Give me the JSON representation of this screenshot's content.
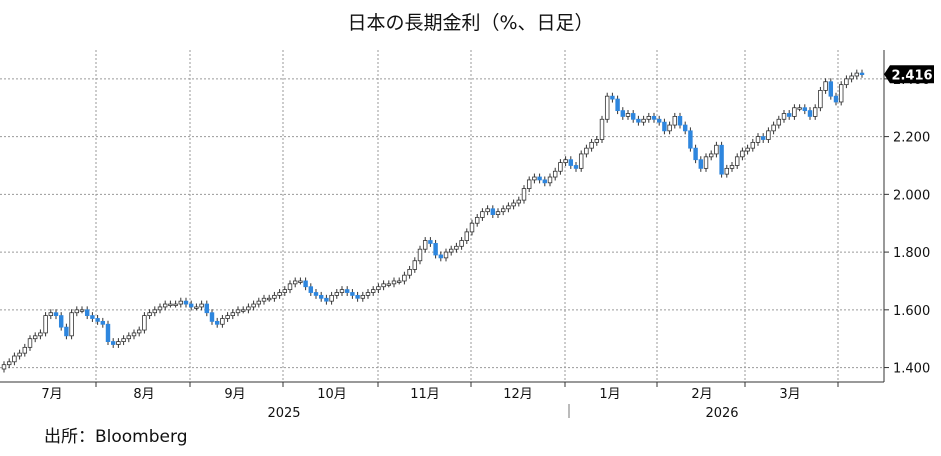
{
  "title": "日本の長期金利（%、日足）",
  "source": "出所：Bloomberg",
  "chart_data": {
    "type": "candlestick",
    "title": "日本の長期金利（%、日足）",
    "ylim": [
      1.35,
      2.5
    ],
    "yticks": [
      "1.400",
      "1.600",
      "1.800",
      "2.000",
      "2.200",
      "2.400"
    ],
    "last_value_label": "2.416",
    "months": [
      "7月",
      "8月",
      "9月",
      "10月",
      "11月",
      "12月",
      "1月",
      "2月",
      "3月"
    ],
    "years": [
      "2025",
      "2026"
    ],
    "grid": true,
    "up_color": "#ffffff",
    "down_color": "#2e86de",
    "close_series": [
      1.41,
      1.42,
      1.44,
      1.45,
      1.47,
      1.5,
      1.51,
      1.52,
      1.58,
      1.59,
      1.58,
      1.54,
      1.51,
      1.59,
      1.6,
      1.6,
      1.58,
      1.57,
      1.56,
      1.55,
      1.49,
      1.48,
      1.49,
      1.5,
      1.51,
      1.52,
      1.53,
      1.58,
      1.59,
      1.6,
      1.61,
      1.62,
      1.62,
      1.62,
      1.63,
      1.62,
      1.61,
      1.61,
      1.62,
      1.59,
      1.56,
      1.55,
      1.57,
      1.58,
      1.59,
      1.6,
      1.6,
      1.61,
      1.62,
      1.63,
      1.64,
      1.64,
      1.65,
      1.66,
      1.67,
      1.69,
      1.7,
      1.7,
      1.68,
      1.66,
      1.65,
      1.64,
      1.63,
      1.65,
      1.66,
      1.67,
      1.66,
      1.65,
      1.64,
      1.65,
      1.66,
      1.67,
      1.68,
      1.69,
      1.69,
      1.7,
      1.7,
      1.72,
      1.74,
      1.77,
      1.81,
      1.84,
      1.83,
      1.79,
      1.78,
      1.8,
      1.81,
      1.82,
      1.84,
      1.87,
      1.9,
      1.92,
      1.94,
      1.95,
      1.93,
      1.94,
      1.95,
      1.96,
      1.97,
      1.98,
      2.02,
      2.05,
      2.06,
      2.05,
      2.04,
      2.06,
      2.08,
      2.11,
      2.12,
      2.1,
      2.09,
      2.14,
      2.16,
      2.18,
      2.19,
      2.26,
      2.34,
      2.33,
      2.29,
      2.27,
      2.28,
      2.26,
      2.25,
      2.26,
      2.27,
      2.26,
      2.25,
      2.22,
      2.24,
      2.27,
      2.24,
      2.22,
      2.16,
      2.12,
      2.09,
      2.13,
      2.14,
      2.17,
      2.07,
      2.09,
      2.1,
      2.13,
      2.15,
      2.16,
      2.18,
      2.2,
      2.19,
      2.22,
      2.24,
      2.26,
      2.28,
      2.27,
      2.3,
      2.3,
      2.29,
      2.27,
      2.3,
      2.36,
      2.39,
      2.34,
      2.32,
      2.38,
      2.4,
      2.41,
      2.42,
      2.416
    ]
  }
}
